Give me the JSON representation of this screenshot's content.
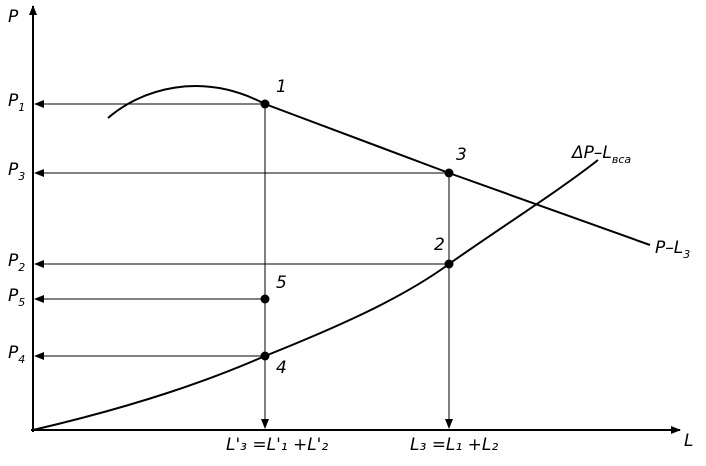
{
  "axes": {
    "y_label": "P",
    "x_label": "L"
  },
  "left_labels": [
    {
      "main": "P",
      "sub": "1"
    },
    {
      "main": "P",
      "sub": "3"
    },
    {
      "main": "P",
      "sub": "2"
    },
    {
      "main": "P",
      "sub": "5"
    },
    {
      "main": "P",
      "sub": "4"
    }
  ],
  "points": [
    "1",
    "3",
    "2",
    "5",
    "4"
  ],
  "bottom_labels": {
    "left": "L'₃ =L'₁ +L'₂",
    "right": "L₃ =L₁ +L₂"
  },
  "curves": {
    "upper": {
      "main": "P–L",
      "sub": "3"
    },
    "lower": {
      "main": "ΔP–L",
      "sub": "вса"
    }
  },
  "colors": {
    "line": "#000000",
    "background": "#ffffff"
  }
}
